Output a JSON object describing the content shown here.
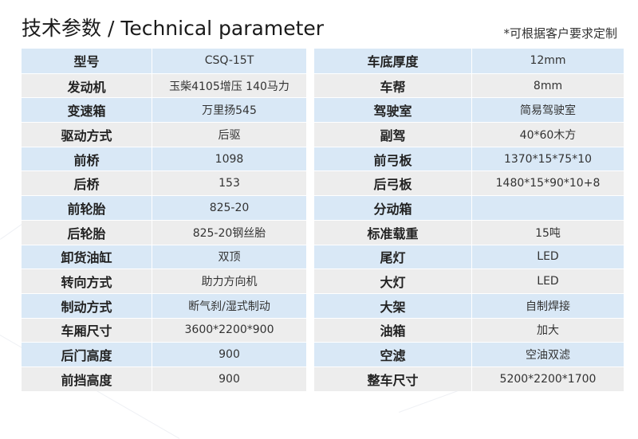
{
  "header": {
    "title": "技术参数 / Technical parameter",
    "note": "*可根据客户要求定制"
  },
  "colors": {
    "row_blue": "#d9e8f6",
    "row_gray": "#ededed"
  },
  "left_table": [
    {
      "label": "型号",
      "value": "CSQ-15T"
    },
    {
      "label": "发动机",
      "value": "玉柴4105增压  140马力"
    },
    {
      "label": "变速箱",
      "value": "万里扬545"
    },
    {
      "label": "驱动方式",
      "value": "后驱"
    },
    {
      "label": "前桥",
      "value": "1098"
    },
    {
      "label": "后桥",
      "value": "153"
    },
    {
      "label": "前轮胎",
      "value": "825-20"
    },
    {
      "label": "后轮胎",
      "value": "825-20钢丝胎"
    },
    {
      "label": "卸货油缸",
      "value": "双顶"
    },
    {
      "label": "转向方式",
      "value": "助力方向机"
    },
    {
      "label": "制动方式",
      "value": "断气刹/湿式制动"
    },
    {
      "label": "车厢尺寸",
      "value": "3600*2200*900"
    },
    {
      "label": "后门高度",
      "value": "900"
    },
    {
      "label": "前挡高度",
      "value": "900"
    }
  ],
  "right_table": [
    {
      "label": "车底厚度",
      "value": "12mm"
    },
    {
      "label": "车帮",
      "value": "8mm"
    },
    {
      "label": "驾驶室",
      "value": "简易驾驶室"
    },
    {
      "label": "副驾",
      "value": "40*60木方"
    },
    {
      "label": "前弓板",
      "value": "1370*15*75*10"
    },
    {
      "label": "后弓板",
      "value": "1480*15*90*10+8"
    },
    {
      "label": "分动箱",
      "value": ""
    },
    {
      "label": "标准载重",
      "value": "15吨"
    },
    {
      "label": "尾灯",
      "value": "LED"
    },
    {
      "label": "大灯",
      "value": "LED"
    },
    {
      "label": "大架",
      "value": "自制焊接"
    },
    {
      "label": "油箱",
      "value": "加大"
    },
    {
      "label": "空滤",
      "value": "空油双滤"
    },
    {
      "label": "整车尺寸",
      "value": "5200*2200*1700"
    }
  ]
}
